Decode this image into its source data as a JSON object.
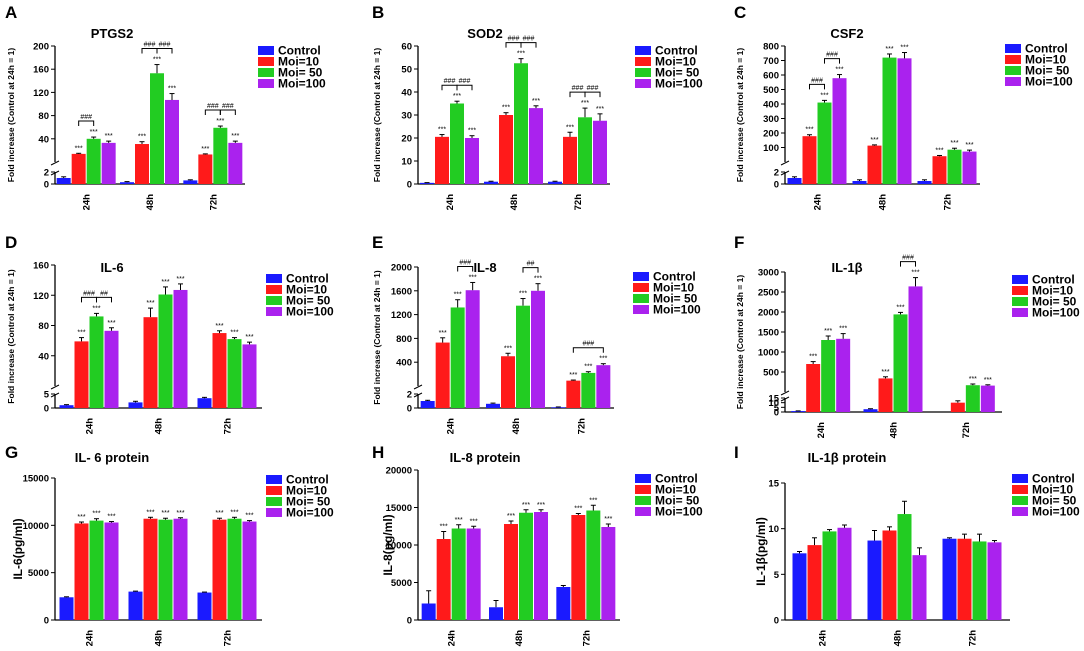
{
  "figure": {
    "legend_labels": [
      "Control",
      "Moi=10",
      "Moi= 50",
      "Moi=100"
    ],
    "colors": [
      "#1a1aff",
      "#ff1a1a",
      "#22cc22",
      "#aa22ee"
    ]
  },
  "chart_data": [
    {
      "panel": "A",
      "title": "PTGS2",
      "type": "bar",
      "broken_axis": true,
      "ylabel": "Fold increase (Control at 24h = 1)",
      "categories": [
        "24h",
        "48h",
        "72h"
      ],
      "lower_ticks": [
        0,
        2
      ],
      "upper_ticks": [
        40,
        80,
        120,
        160,
        200
      ],
      "series": [
        {
          "name": "Control",
          "values": [
            1,
            0.3,
            0.6
          ],
          "errors": [
            0.2,
            0.1,
            0.1
          ]
        },
        {
          "name": "Moi=10",
          "values": [
            14,
            31,
            13
          ],
          "errors": [
            1,
            4,
            1
          ]
        },
        {
          "name": "Moi= 50",
          "values": [
            40,
            153,
            59
          ],
          "errors": [
            3,
            15,
            3
          ]
        },
        {
          "name": "Moi=100",
          "values": [
            33,
            107,
            33
          ],
          "errors": [
            3,
            11,
            3
          ]
        }
      ],
      "labels": [
        "***",
        "***",
        "***",
        "***",
        "***",
        "***",
        "***",
        "***",
        "***"
      ],
      "brackets": [
        {
          "group": 0,
          "from": 1,
          "to": 2,
          "text": "###"
        },
        {
          "group": 1,
          "from": 1,
          "to": 2,
          "text": "###"
        },
        {
          "group": 1,
          "from": 2,
          "to": 3,
          "text": "###"
        },
        {
          "group": 2,
          "from": 1,
          "to": 2,
          "text": "###"
        },
        {
          "group": 2,
          "from": 2,
          "to": 3,
          "text": "###"
        }
      ]
    },
    {
      "panel": "B",
      "title": "SOD2",
      "type": "bar",
      "broken_axis": false,
      "ylabel": "Fold increase (Control at 24h = 1)",
      "categories": [
        "24h",
        "48h",
        "72h"
      ],
      "ticks": [
        0,
        10,
        20,
        30,
        40,
        50,
        60
      ],
      "ylim": [
        0,
        60
      ],
      "series": [
        {
          "name": "Control",
          "values": [
            0.5,
            1,
            1
          ],
          "errors": [
            0.1,
            0.2,
            0.2
          ]
        },
        {
          "name": "Moi=10",
          "values": [
            20.5,
            30,
            20.5
          ],
          "errors": [
            1,
            1,
            2
          ]
        },
        {
          "name": "Moi= 50",
          "values": [
            35,
            52.5,
            29
          ],
          "errors": [
            1,
            2,
            4
          ]
        },
        {
          "name": "Moi=100",
          "values": [
            20,
            33,
            27.5
          ],
          "errors": [
            1,
            1,
            3
          ]
        }
      ],
      "labels": [
        "***",
        "***",
        "***",
        "***",
        "***",
        "***",
        "***",
        "***",
        "***"
      ],
      "brackets": [
        {
          "group": 0,
          "from": 1,
          "to": 2,
          "text": "###"
        },
        {
          "group": 0,
          "from": 2,
          "to": 3,
          "text": "###"
        },
        {
          "group": 1,
          "from": 1,
          "to": 2,
          "text": "###"
        },
        {
          "group": 1,
          "from": 2,
          "to": 3,
          "text": "###"
        },
        {
          "group": 2,
          "from": 1,
          "to": 2,
          "text": "###"
        },
        {
          "group": 2,
          "from": 2,
          "to": 3,
          "text": "###"
        }
      ]
    },
    {
      "panel": "C",
      "title": "CSF2",
      "type": "bar",
      "broken_axis": true,
      "ylabel": "Fold increase (Control at 24h = 1)",
      "categories": [
        "24h",
        "48h",
        "72h"
      ],
      "lower_ticks": [
        0,
        2
      ],
      "upper_ticks": [
        100,
        200,
        300,
        400,
        500,
        600,
        700,
        800
      ],
      "series": [
        {
          "name": "Control",
          "values": [
            1,
            0.5,
            0.5
          ],
          "errors": [
            0.2,
            0.2,
            0.2
          ]
        },
        {
          "name": "Moi=10",
          "values": [
            178,
            113,
            40
          ],
          "errors": [
            10,
            5,
            5
          ]
        },
        {
          "name": "Moi= 50",
          "values": [
            410,
            720,
            85
          ],
          "errors": [
            15,
            25,
            10
          ]
        },
        {
          "name": "Moi=100",
          "values": [
            578,
            715,
            72
          ],
          "errors": [
            25,
            40,
            10
          ]
        }
      ],
      "labels": [
        "***",
        "***",
        "***",
        "***",
        "***",
        "***",
        "***",
        "***",
        "***"
      ],
      "brackets": [
        {
          "group": 0,
          "from": 1,
          "to": 2,
          "text": "###"
        },
        {
          "group": 0,
          "from": 2,
          "to": 3,
          "text": "###"
        }
      ]
    },
    {
      "panel": "D",
      "title": "IL-6",
      "type": "bar",
      "broken_axis": true,
      "ylabel": "Fold increase (Control at 24h = 1)",
      "categories": [
        "24h",
        "48h",
        "72h"
      ],
      "lower_ticks": [
        0,
        5
      ],
      "upper_ticks": [
        40,
        80,
        120,
        160
      ],
      "series": [
        {
          "name": "Control",
          "values": [
            1,
            2,
            3.5
          ],
          "errors": [
            0.2,
            0.4,
            0.3
          ]
        },
        {
          "name": "Moi=10",
          "values": [
            59,
            91,
            70
          ],
          "errors": [
            5,
            12,
            3
          ]
        },
        {
          "name": "Moi= 50",
          "values": [
            92,
            121,
            62
          ],
          "errors": [
            4,
            10,
            2
          ]
        },
        {
          "name": "Moi=100",
          "values": [
            73,
            127,
            55
          ],
          "errors": [
            4,
            8,
            3
          ]
        }
      ],
      "labels": [
        "***",
        "***",
        "***",
        "***",
        "***",
        "***",
        "***",
        "***",
        "***"
      ],
      "brackets": [
        {
          "group": 0,
          "from": 1,
          "to": 2,
          "text": "###"
        },
        {
          "group": 0,
          "from": 2,
          "to": 3,
          "text": "##"
        }
      ]
    },
    {
      "panel": "E",
      "title": "IL-8",
      "type": "bar",
      "broken_axis": true,
      "ylabel": "Fold increase (Control at 24h = 1)",
      "categories": [
        "24h",
        "48h",
        "72h"
      ],
      "lower_ticks": [
        0,
        2
      ],
      "upper_ticks": [
        400,
        800,
        1200,
        1600,
        2000
      ],
      "series": [
        {
          "name": "Control",
          "values": [
            1,
            0.6,
            0.1
          ],
          "errors": [
            0.1,
            0.1,
            0.05
          ]
        },
        {
          "name": "Moi=10",
          "values": [
            730,
            500,
            90
          ],
          "errors": [
            80,
            50,
            10
          ]
        },
        {
          "name": "Moi= 50",
          "values": [
            1320,
            1350,
            220
          ],
          "errors": [
            130,
            120,
            20
          ]
        },
        {
          "name": "Moi=100",
          "values": [
            1610,
            1600,
            350
          ],
          "errors": [
            130,
            120,
            25
          ]
        }
      ],
      "labels": [
        "***",
        "***",
        "***",
        "***",
        "***",
        "***",
        "***",
        "***",
        "***"
      ],
      "brackets": [
        {
          "group": 0,
          "from": 2,
          "to": 3,
          "text": "###"
        },
        {
          "group": 1,
          "from": 2,
          "to": 3,
          "text": "##"
        },
        {
          "group": 2,
          "from": 1,
          "to": 3,
          "text": "###"
        }
      ]
    },
    {
      "panel": "F",
      "title": "IL-1β",
      "type": "bar",
      "broken_axis": true,
      "ylabel": "Fold increase (Control at 24h = 1)",
      "categories": [
        "24h",
        "48h",
        "72h"
      ],
      "lower_ticks": [
        0,
        5,
        10,
        15
      ],
      "upper_ticks": [
        500,
        1000,
        1500,
        2000,
        2500,
        3000
      ],
      "series": [
        {
          "name": "Control",
          "values": [
            1,
            3,
            0
          ],
          "errors": [
            0.2,
            0.5,
            0
          ]
        },
        {
          "name": "Moi=10",
          "values": [
            700,
            340,
            10
          ],
          "errors": [
            60,
            40,
            2
          ]
        },
        {
          "name": "Moi= 50",
          "values": [
            1300,
            1940,
            170
          ],
          "errors": [
            100,
            50,
            30
          ]
        },
        {
          "name": "Moi=100",
          "values": [
            1330,
            2640,
            160
          ],
          "errors": [
            130,
            220,
            20
          ]
        }
      ],
      "labels": [
        "***",
        "***",
        "***",
        "***",
        "***",
        "***",
        "",
        "***",
        "***"
      ],
      "brackets": [
        {
          "group": 1,
          "from": 2,
          "to": 3,
          "text": "###"
        }
      ]
    },
    {
      "panel": "G",
      "title": "IL- 6 protein",
      "type": "bar",
      "broken_axis": false,
      "ylabel": "IL-6(pg/ml)",
      "categories": [
        "24h",
        "48h",
        "72h"
      ],
      "ticks": [
        0,
        5000,
        10000,
        15000
      ],
      "ylim": [
        0,
        15000
      ],
      "series": [
        {
          "name": "Control",
          "values": [
            2400,
            3000,
            2900
          ],
          "errors": [
            50,
            50,
            50
          ]
        },
        {
          "name": "Moi=10",
          "values": [
            10200,
            10700,
            10600
          ],
          "errors": [
            150,
            150,
            150
          ]
        },
        {
          "name": "Moi= 50",
          "values": [
            10500,
            10600,
            10700
          ],
          "errors": [
            200,
            150,
            150
          ]
        },
        {
          "name": "Moi=100",
          "values": [
            10300,
            10700,
            10400
          ],
          "errors": [
            100,
            100,
            100
          ]
        }
      ],
      "labels": [
        "***",
        "***",
        "***",
        "***",
        "***",
        "***",
        "***",
        "***",
        "***"
      ],
      "brackets": []
    },
    {
      "panel": "H",
      "title": "IL-8 protein",
      "type": "bar",
      "broken_axis": false,
      "ylabel": "IL-8(pg/ml)",
      "categories": [
        "24h",
        "48h",
        "72h"
      ],
      "ticks": [
        0,
        5000,
        10000,
        15000,
        20000
      ],
      "ylim": [
        0,
        20000
      ],
      "series": [
        {
          "name": "Control",
          "values": [
            2200,
            1700,
            4400
          ],
          "errors": [
            1700,
            900,
            200
          ]
        },
        {
          "name": "Moi=10",
          "values": [
            10800,
            12800,
            14000
          ],
          "errors": [
            1000,
            400,
            200
          ]
        },
        {
          "name": "Moi= 50",
          "values": [
            12200,
            14300,
            14600
          ],
          "errors": [
            500,
            400,
            700
          ]
        },
        {
          "name": "Moi=100",
          "values": [
            12200,
            14400,
            12400
          ],
          "errors": [
            300,
            300,
            400
          ]
        }
      ],
      "labels": [
        "***",
        "***",
        "***",
        "***",
        "***",
        "***",
        "***",
        "***",
        "***"
      ],
      "brackets": []
    },
    {
      "panel": "I",
      "title": "IL-1β protein",
      "type": "bar",
      "broken_axis": false,
      "ylabel": "IL-1β(pg/ml)",
      "categories": [
        "24h",
        "48h",
        "72h"
      ],
      "ticks": [
        0,
        5,
        10,
        15
      ],
      "ylim": [
        0,
        15
      ],
      "series": [
        {
          "name": "Control",
          "values": [
            7.3,
            8.7,
            8.9
          ],
          "errors": [
            0.2,
            1.1,
            0.1
          ]
        },
        {
          "name": "Moi=10",
          "values": [
            8.2,
            9.8,
            8.9
          ],
          "errors": [
            0.8,
            0.4,
            0.5
          ]
        },
        {
          "name": "Moi= 50",
          "values": [
            9.7,
            11.6,
            8.6
          ],
          "errors": [
            0.2,
            1.4,
            0.8
          ]
        },
        {
          "name": "Moi=100",
          "values": [
            10.1,
            7.1,
            8.5
          ],
          "errors": [
            0.3,
            0.8,
            0.2
          ]
        }
      ],
      "labels": [],
      "brackets": []
    }
  ]
}
